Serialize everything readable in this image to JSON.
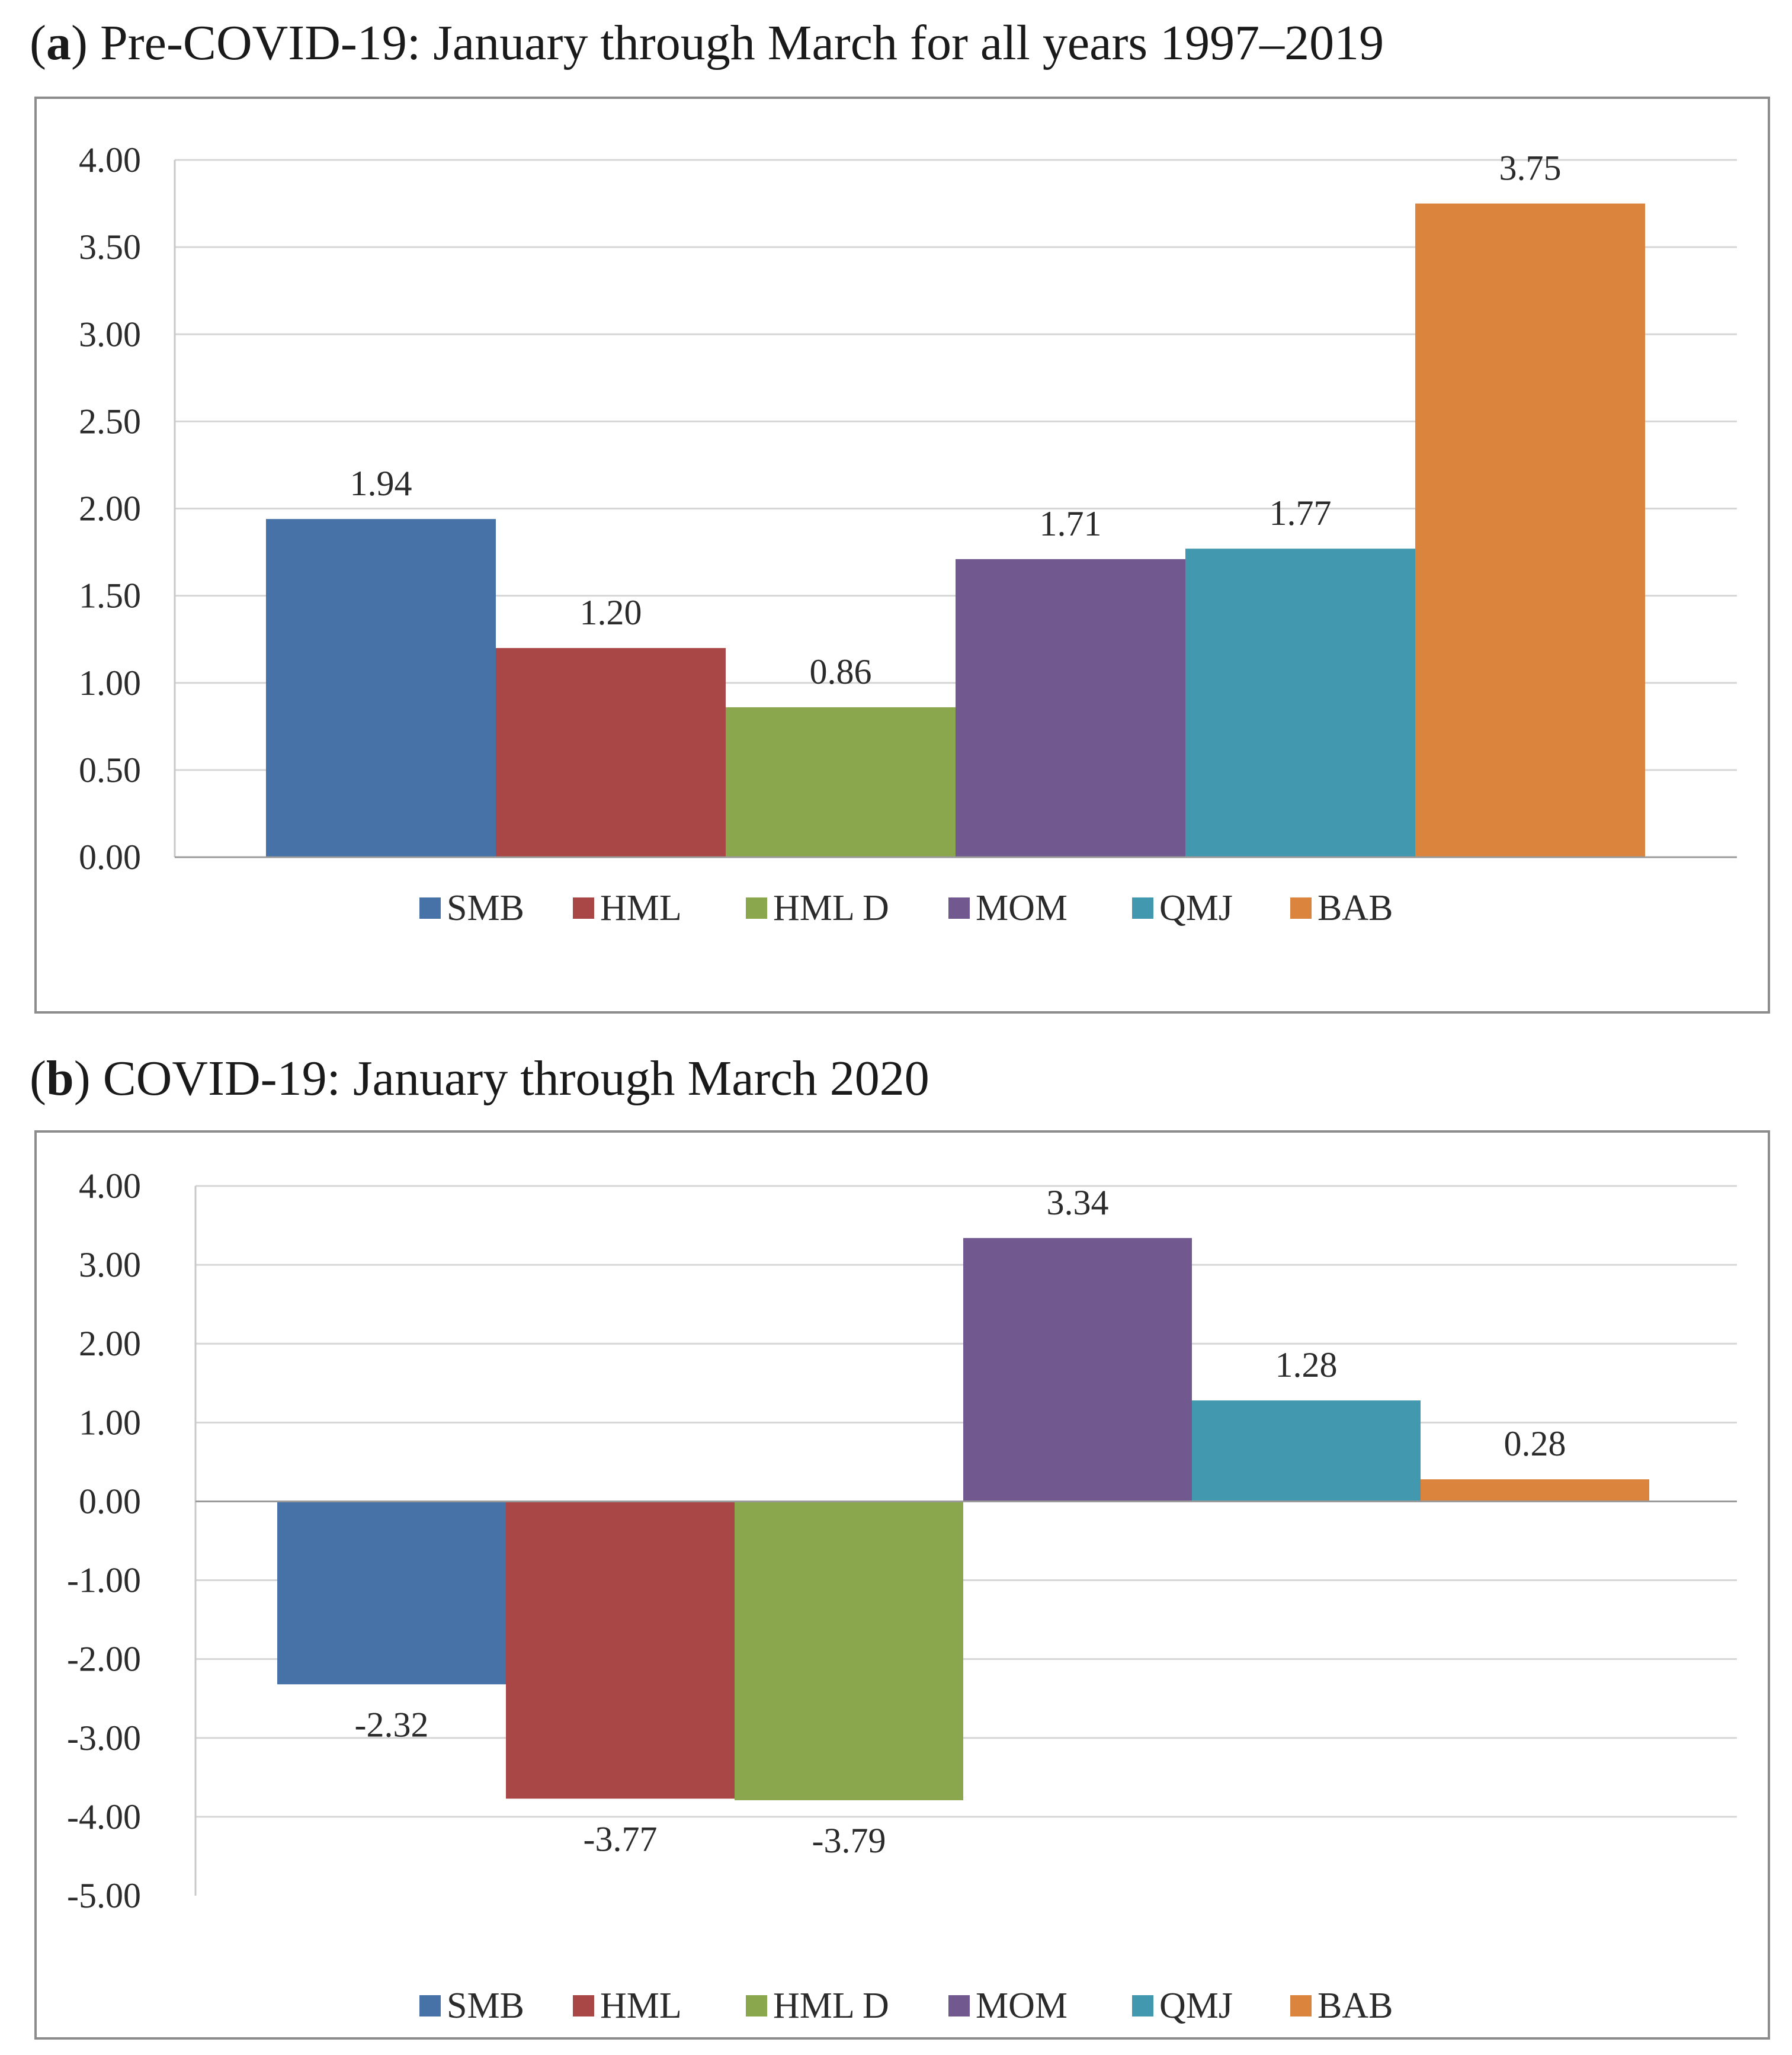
{
  "chart_data": [
    {
      "id": "a",
      "type": "bar",
      "title_letter": "a",
      "title": "Pre-COVID-19: January through March for all years 1997–2019",
      "categories": [
        "SMB",
        "HML",
        "HML D",
        "MOM",
        "QMJ",
        "BAB"
      ],
      "values": [
        1.94,
        1.2,
        0.86,
        1.71,
        1.77,
        3.75
      ],
      "value_labels": [
        "1.94",
        "1.20",
        "0.86",
        "1.71",
        "1.77",
        "3.75"
      ],
      "yticks": [
        "0.00",
        "0.50",
        "1.00",
        "1.50",
        "2.00",
        "2.50",
        "3.00",
        "3.50",
        "4.00"
      ],
      "ylim": [
        0,
        4
      ],
      "ystep": 0.5,
      "xlabel": "",
      "ylabel": "",
      "grid": true,
      "legend": "bottom"
    },
    {
      "id": "b",
      "type": "bar",
      "title_letter": "b",
      "title": "COVID-19: January through March 2020",
      "categories": [
        "SMB",
        "HML",
        "HML D",
        "MOM",
        "QMJ",
        "BAB"
      ],
      "values": [
        -2.32,
        -3.77,
        -3.79,
        3.34,
        1.28,
        0.28
      ],
      "value_labels": [
        "-2.32",
        "-3.77",
        "-3.79",
        "3.34",
        "1.28",
        "0.28"
      ],
      "yticks": [
        "-5.00",
        "-4.00",
        "-3.00",
        "-2.00",
        "-1.00",
        "0.00",
        "1.00",
        "2.00",
        "3.00",
        "4.00"
      ],
      "ylim": [
        -5,
        4
      ],
      "ystep": 1,
      "xlabel": "",
      "ylabel": "",
      "grid": true,
      "legend": "bottom"
    }
  ],
  "colors": {
    "SMB": "#4672a8",
    "HML": "#a94646",
    "HML D": "#8aa74e",
    "MOM": "#71588f",
    "QMJ": "#4198af",
    "BAB": "#db843d"
  }
}
